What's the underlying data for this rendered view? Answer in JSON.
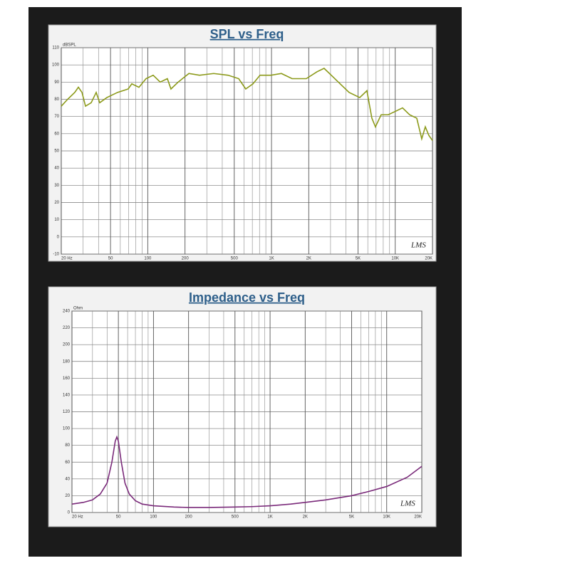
{
  "chart_data": [
    {
      "type": "line",
      "title": "SPL vs Freq",
      "y_label": "dBSPL",
      "annotation": "LMS",
      "log_x": true,
      "grid": true,
      "color": "#8c9a1a",
      "x": [
        20,
        22.5,
        25.7,
        27.5,
        29.4,
        31.4,
        34.9,
        38.3,
        40.9,
        46.7,
        57,
        69.5,
        74.3,
        84.9,
        96.8,
        110.6,
        126,
        144,
        154,
        176,
        215,
        262,
        341,
        445,
        543,
        619,
        708,
        808,
        986,
        1202,
        1466,
        1910,
        2333,
        2661,
        3041,
        3468,
        4236,
        5165,
        5902,
        6473,
        6918,
        7691,
        8770,
        10024,
        11456,
        13068,
        14928,
        16376,
        17500,
        18700,
        20000
      ],
      "values": [
        76,
        80,
        84,
        87,
        84,
        76,
        78,
        84,
        78,
        81,
        84,
        86,
        89,
        87,
        92,
        94,
        90,
        92,
        86,
        90,
        95,
        94,
        95,
        94,
        92,
        86,
        89,
        94,
        94,
        95,
        92,
        92,
        96,
        98,
        94,
        90,
        84,
        81,
        85,
        69,
        64,
        71,
        71,
        73,
        75,
        71,
        69,
        57,
        64,
        59,
        56
      ],
      "xlim": [
        20,
        20000
      ],
      "xticks": [
        {
          "value": 20,
          "label": "20 Hz"
        },
        50,
        100,
        200,
        500,
        {
          "value": 1000,
          "label": "1K"
        },
        {
          "value": 2000,
          "label": "2K"
        },
        {
          "value": 5000,
          "label": "5K"
        },
        {
          "value": 10000,
          "label": "10K"
        },
        {
          "value": 20000,
          "label": "20K"
        }
      ],
      "x_minor_grid": [
        30,
        40,
        60,
        70,
        80,
        90,
        300,
        400,
        600,
        700,
        800,
        900,
        3000,
        4000,
        6000,
        7000,
        8000,
        9000
      ],
      "ylim": [
        -10,
        110
      ],
      "yticks": [
        -10,
        0,
        10,
        20,
        30,
        40,
        50,
        60,
        70,
        80,
        90,
        100,
        110
      ]
    },
    {
      "type": "line",
      "title": "Impedance vs Freq",
      "y_label": "Ohm",
      "annotation": "LMS",
      "log_x": true,
      "grid": true,
      "color": "#7a2a7a",
      "x": [
        20,
        25,
        30,
        35,
        40,
        44,
        47,
        48.5,
        50,
        53,
        57,
        62,
        70,
        80,
        100,
        150,
        200,
        300,
        500,
        700,
        1000,
        1500,
        2000,
        3000,
        5000,
        7000,
        10000,
        15000,
        20000
      ],
      "values": [
        10,
        12,
        15,
        22,
        35,
        60,
        85,
        90,
        85,
        60,
        35,
        22,
        14,
        10,
        8,
        6.5,
        6,
        6,
        6.5,
        7,
        8,
        10,
        12,
        15,
        20,
        25,
        31,
        42,
        55
      ],
      "xlim": [
        20,
        20000
      ],
      "xticks": [
        {
          "value": 20,
          "label": "20 Hz"
        },
        50,
        100,
        200,
        500,
        {
          "value": 1000,
          "label": "1K"
        },
        {
          "value": 2000,
          "label": "2K"
        },
        {
          "value": 5000,
          "label": "5K"
        },
        {
          "value": 10000,
          "label": "10K"
        },
        {
          "value": 20000,
          "label": "20K"
        }
      ],
      "x_minor_grid": [
        30,
        40,
        60,
        70,
        80,
        90,
        300,
        400,
        600,
        700,
        800,
        900,
        3000,
        4000,
        6000,
        7000,
        8000,
        9000
      ],
      "ylim": [
        0,
        240
      ],
      "yticks": [
        0,
        20,
        40,
        60,
        80,
        100,
        120,
        140,
        160,
        180,
        200,
        220,
        240
      ]
    }
  ]
}
